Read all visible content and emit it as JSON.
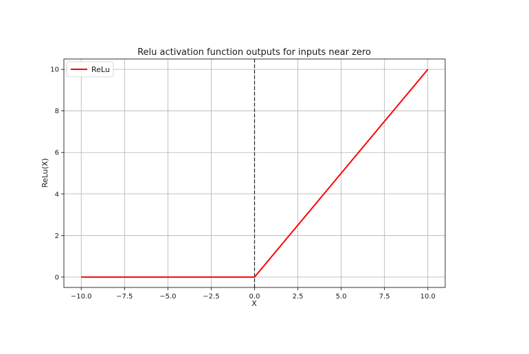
{
  "chart_data": {
    "type": "line",
    "title": "Relu activation function outputs for inputs near zero",
    "xlabel": "X",
    "ylabel": "ReLu(X)",
    "xlim": [
      -11,
      11
    ],
    "ylim": [
      -0.5,
      10.5
    ],
    "xticks": [
      -10.0,
      -7.5,
      -5.0,
      -2.5,
      0.0,
      2.5,
      5.0,
      7.5,
      10.0
    ],
    "xtick_labels": [
      "−10.0",
      "−7.5",
      "−5.0",
      "−2.5",
      "0.0",
      "2.5",
      "5.0",
      "7.5",
      "10.0"
    ],
    "yticks": [
      0,
      2,
      4,
      6,
      8,
      10
    ],
    "ytick_labels": [
      "0",
      "2",
      "4",
      "6",
      "8",
      "10"
    ],
    "grid": true,
    "legend": "top-left",
    "vline": {
      "x": 0,
      "style": "dashed",
      "color": "#222222"
    },
    "series": [
      {
        "name": "ReLu",
        "color": "#ff0000",
        "x": [
          -10,
          0,
          10
        ],
        "y": [
          0,
          0,
          10
        ]
      }
    ]
  }
}
